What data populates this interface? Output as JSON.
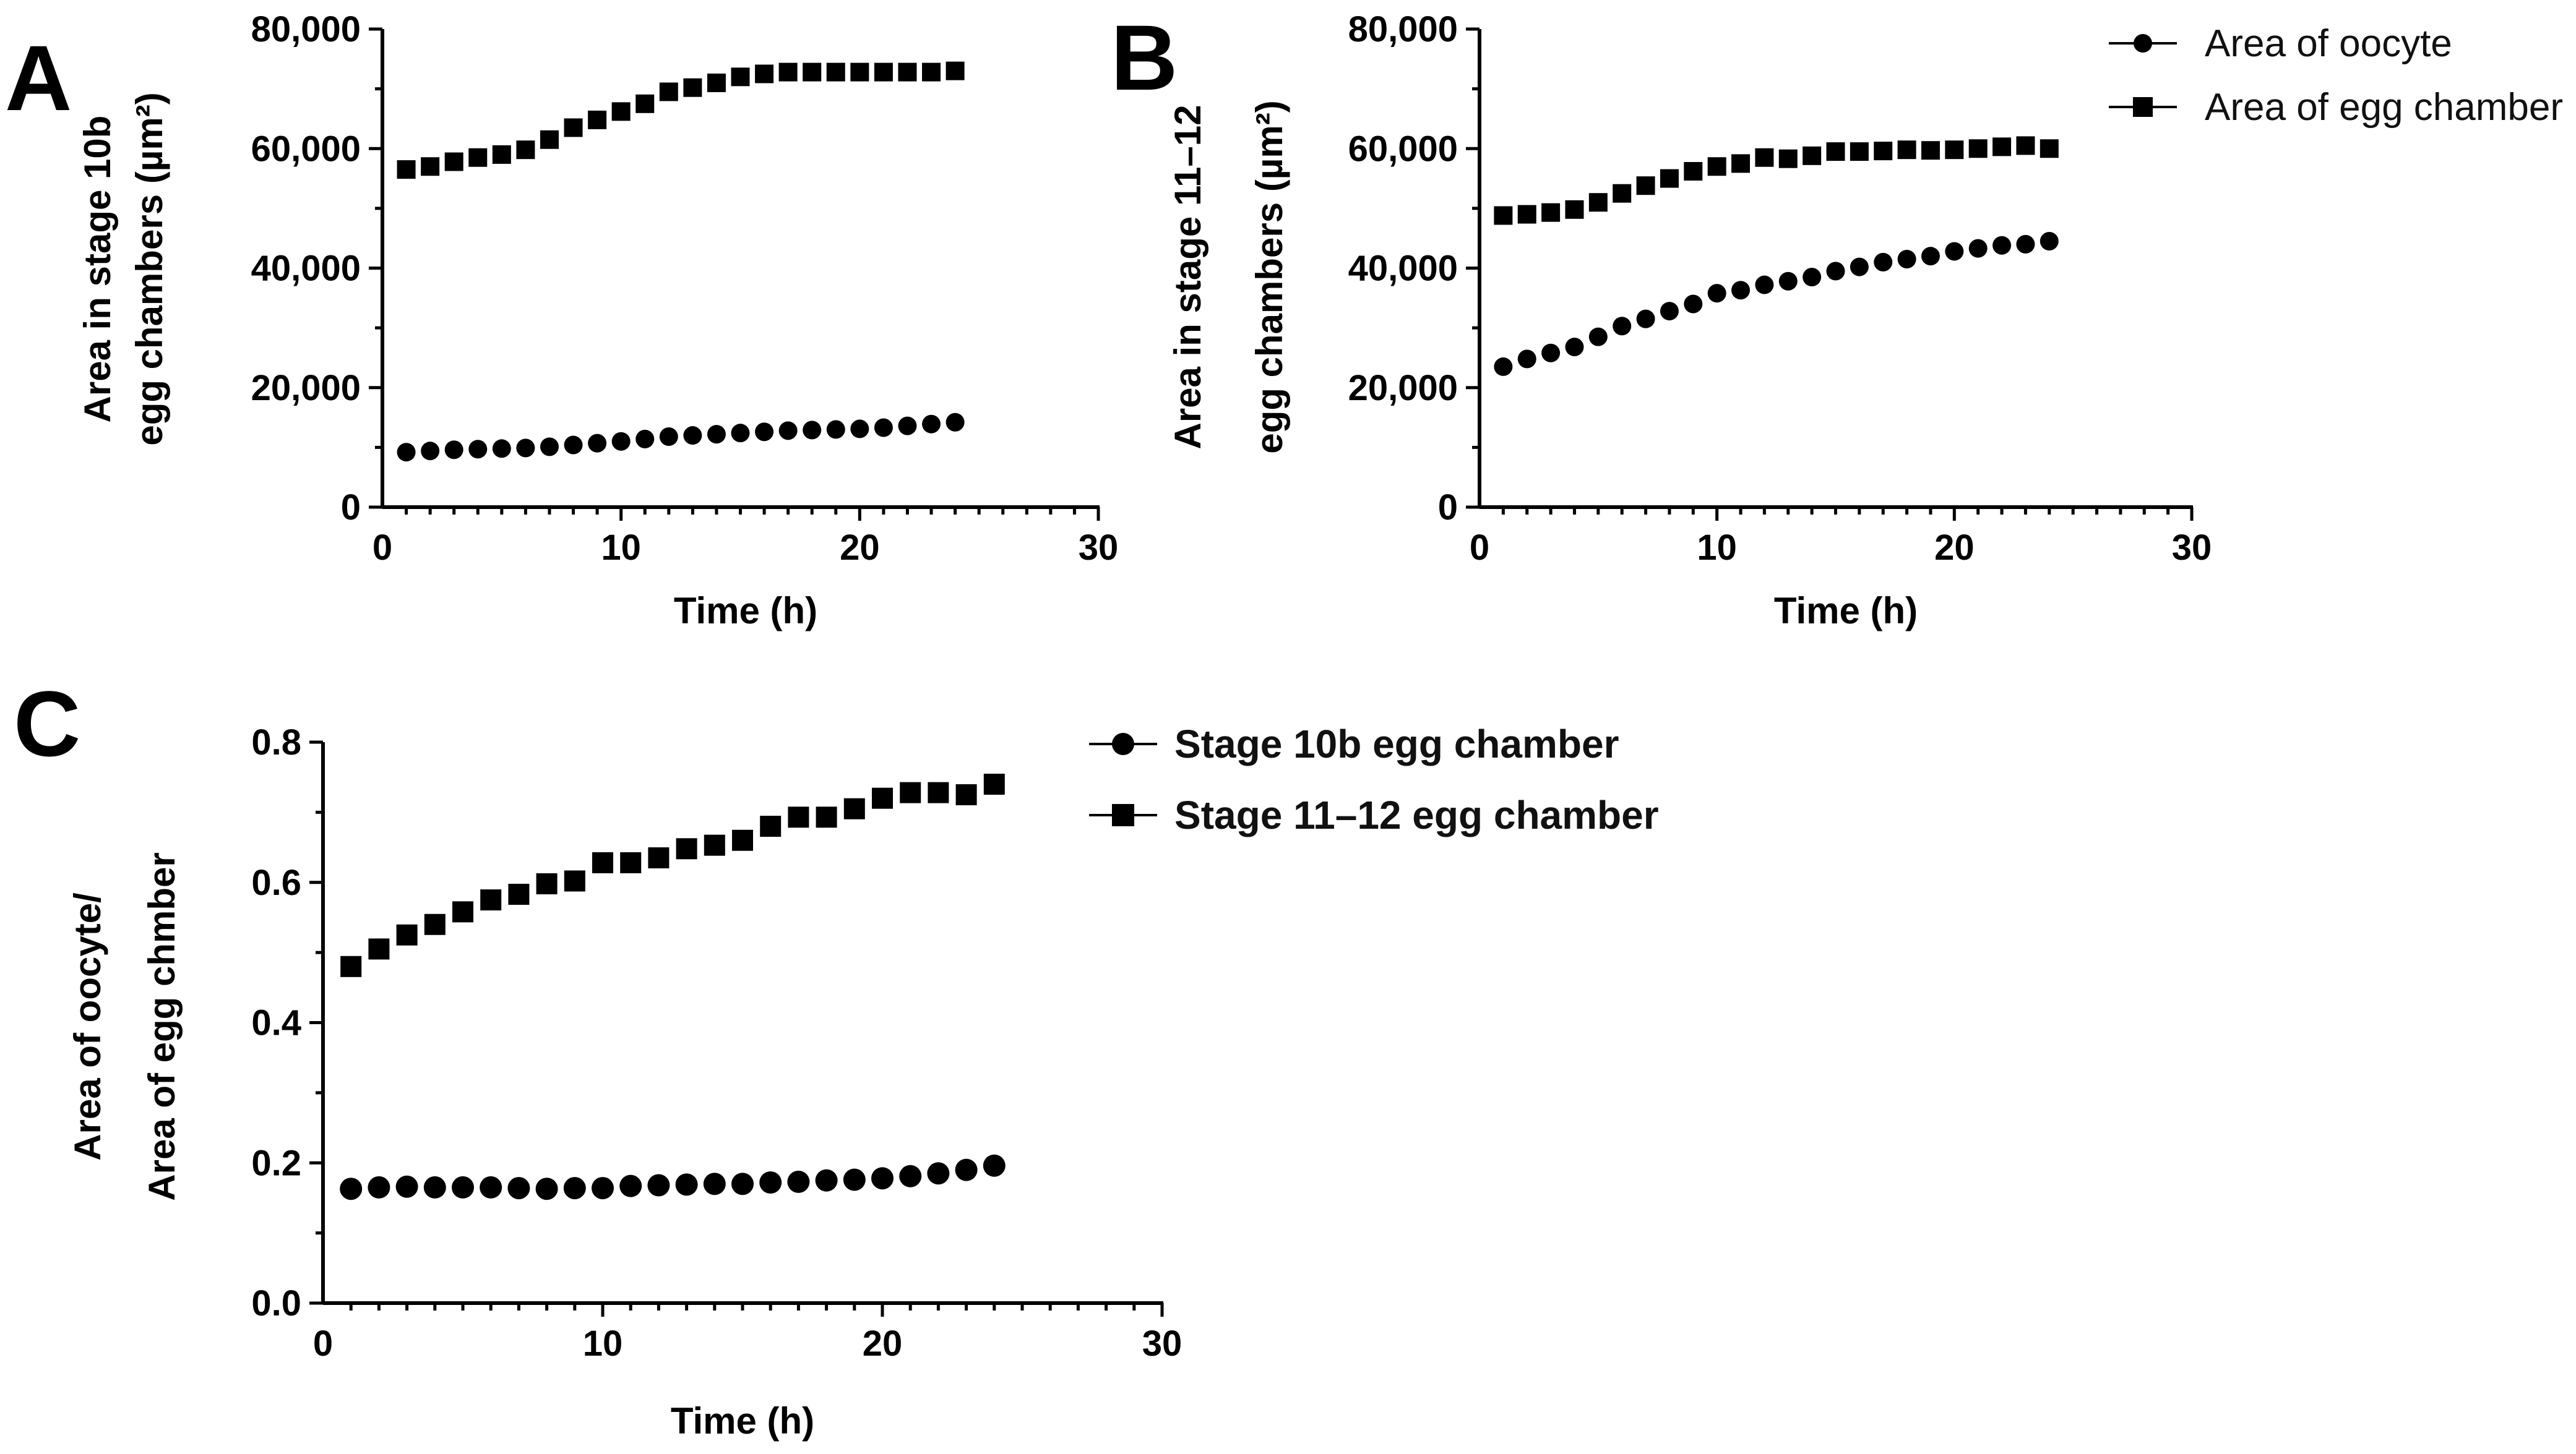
{
  "panels": {
    "a": {
      "letter": "A",
      "xlabel": "Time (h)",
      "ylabel_line1": "Area in stage 10b",
      "ylabel_line2": "egg chambers (µm²)",
      "xticks": [
        "0",
        "10",
        "20",
        "30"
      ],
      "yticks": [
        "0",
        "20,000",
        "40,000",
        "60,000",
        "80,000"
      ]
    },
    "b": {
      "letter": "B",
      "xlabel": "Time (h)",
      "ylabel_line1": "Area in stage 11–12",
      "ylabel_line2": "egg chambers (µm²)",
      "xticks": [
        "0",
        "10",
        "20",
        "30"
      ],
      "yticks": [
        "0",
        "20,000",
        "40,000",
        "60,000",
        "80,000"
      ]
    },
    "c": {
      "letter": "C",
      "xlabel": "Time (h)",
      "ylabel_line1": "Area of oocyte/",
      "ylabel_line2": "Area of egg chmber",
      "xticks": [
        "0",
        "10",
        "20",
        "30"
      ],
      "yticks": [
        "0.0",
        "0.2",
        "0.4",
        "0.6",
        "0.8"
      ]
    }
  },
  "legend_ab": [
    {
      "label": "Area of oocyte",
      "marker": "circle"
    },
    {
      "label": "Area of egg chamber",
      "marker": "square"
    }
  ],
  "legend_c": [
    {
      "label": "Stage 10b egg chamber",
      "marker": "circle"
    },
    {
      "label": "Stage 11–12 egg chamber",
      "marker": "square"
    }
  ],
  "chart_data": [
    {
      "panel": "A",
      "type": "scatter",
      "xlabel": "Time (h)",
      "ylabel": "Area in stage 10b egg chambers (µm²)",
      "xlim": [
        0,
        30
      ],
      "ylim": [
        0,
        80000
      ],
      "x": [
        1,
        2,
        3,
        4,
        5,
        6,
        7,
        8,
        9,
        10,
        11,
        12,
        13,
        14,
        15,
        16,
        17,
        18,
        19,
        20,
        21,
        22,
        23,
        24
      ],
      "series": [
        {
          "name": "Area of oocyte",
          "marker": "circle",
          "values": [
            9200,
            9400,
            9600,
            9700,
            9800,
            9900,
            10100,
            10400,
            10700,
            11000,
            11400,
            11800,
            12000,
            12200,
            12400,
            12600,
            12800,
            12900,
            13000,
            13100,
            13300,
            13600,
            13900,
            14200
          ]
        },
        {
          "name": "Area of egg chamber",
          "marker": "square",
          "values": [
            56500,
            57000,
            57800,
            58500,
            59000,
            59800,
            61500,
            63500,
            64800,
            66200,
            67500,
            69500,
            70200,
            71000,
            72000,
            72500,
            72800,
            72800,
            72800,
            72800,
            72800,
            72800,
            72800,
            73000
          ]
        }
      ]
    },
    {
      "panel": "B",
      "type": "scatter",
      "xlabel": "Time (h)",
      "ylabel": "Area in stage 11–12 egg chambers (µm²)",
      "xlim": [
        0,
        30
      ],
      "ylim": [
        0,
        80000
      ],
      "x": [
        1,
        2,
        3,
        4,
        5,
        6,
        7,
        8,
        9,
        10,
        11,
        12,
        13,
        14,
        15,
        16,
        17,
        18,
        19,
        20,
        21,
        22,
        23,
        24
      ],
      "series": [
        {
          "name": "Area of oocyte",
          "marker": "circle",
          "values": [
            23500,
            24800,
            25800,
            26800,
            28500,
            30300,
            31500,
            32800,
            34000,
            35800,
            36300,
            37200,
            37800,
            38500,
            39500,
            40200,
            41000,
            41500,
            42000,
            42800,
            43300,
            43800,
            44000,
            44500
          ]
        },
        {
          "name": "Area of egg chamber",
          "marker": "square",
          "values": [
            48800,
            49000,
            49300,
            49800,
            51000,
            52500,
            53800,
            55000,
            56200,
            57000,
            57500,
            58500,
            58300,
            58800,
            59500,
            59500,
            59600,
            59800,
            59700,
            59800,
            60000,
            60300,
            60500,
            60000
          ]
        }
      ]
    },
    {
      "panel": "C",
      "type": "scatter",
      "xlabel": "Time (h)",
      "ylabel": "Area of oocyte/ Area of egg chmber",
      "xlim": [
        0,
        30
      ],
      "ylim": [
        0,
        0.8
      ],
      "x": [
        1,
        2,
        3,
        4,
        5,
        6,
        7,
        8,
        9,
        10,
        11,
        12,
        13,
        14,
        15,
        16,
        17,
        18,
        19,
        20,
        21,
        22,
        23,
        24
      ],
      "series": [
        {
          "name": "Stage 10b egg chamber",
          "marker": "circle",
          "values": [
            0.163,
            0.165,
            0.166,
            0.165,
            0.165,
            0.165,
            0.164,
            0.163,
            0.164,
            0.164,
            0.167,
            0.168,
            0.169,
            0.17,
            0.17,
            0.172,
            0.173,
            0.175,
            0.176,
            0.178,
            0.181,
            0.185,
            0.19,
            0.196
          ]
        },
        {
          "name": "Stage 11–12 egg chamber",
          "marker": "square",
          "values": [
            0.48,
            0.505,
            0.525,
            0.54,
            0.558,
            0.575,
            0.583,
            0.598,
            0.602,
            0.628,
            0.628,
            0.635,
            0.648,
            0.653,
            0.66,
            0.68,
            0.693,
            0.693,
            0.705,
            0.72,
            0.728,
            0.728,
            0.725,
            0.74
          ]
        }
      ]
    }
  ]
}
